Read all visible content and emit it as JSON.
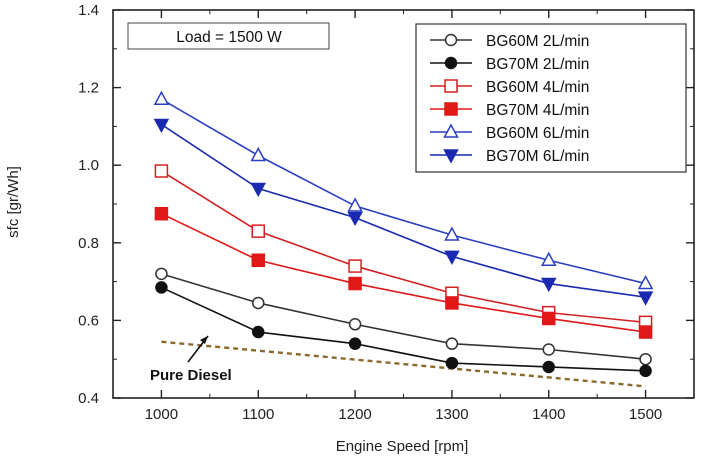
{
  "chart_data": {
    "type": "line",
    "xlabel": "Engine Speed [rpm]",
    "ylabel": "sfc [gr/Wh]",
    "xlim": [
      950,
      1550
    ],
    "ylim": [
      0.4,
      1.4
    ],
    "x": [
      1000,
      1100,
      1200,
      1300,
      1400,
      1500
    ],
    "x_ticks": [
      "1000",
      "1100",
      "1200",
      "1300",
      "1400",
      "1500"
    ],
    "y_ticks": [
      "0.4",
      "0.6",
      "0.8",
      "1.0",
      "1.2",
      "1.4"
    ],
    "grid": false,
    "legend_position": "top-right",
    "annotations": {
      "load_box": "Load = 1500 W",
      "diesel_label": "Pure Diesel"
    },
    "series": [
      {
        "name": "BG60M 2L/min",
        "color": "#333333",
        "marker": "circle-open",
        "values": [
          0.72,
          0.645,
          0.59,
          0.54,
          0.525,
          0.5
        ]
      },
      {
        "name": "BG70M 2L/min",
        "color": "#111111",
        "marker": "circle-filled",
        "values": [
          0.685,
          0.57,
          0.54,
          0.49,
          0.48,
          0.47
        ]
      },
      {
        "name": "BG60M 4L/min",
        "color": "#d42020",
        "marker": "square-open",
        "values": [
          0.985,
          0.83,
          0.74,
          0.67,
          0.62,
          0.595
        ]
      },
      {
        "name": "BG70M 4L/min",
        "color": "#e01818",
        "marker": "square-filled",
        "values": [
          0.875,
          0.755,
          0.695,
          0.645,
          0.605,
          0.57
        ]
      },
      {
        "name": "BG60M 6L/min",
        "color": "#2b3fc2",
        "marker": "triangle-up-open",
        "values": [
          1.17,
          1.025,
          0.895,
          0.82,
          0.755,
          0.695
        ]
      },
      {
        "name": "BG70M 6L/min",
        "color": "#1a2ab0",
        "marker": "triangle-down-filled",
        "values": [
          1.105,
          0.94,
          0.865,
          0.765,
          0.695,
          0.66
        ]
      }
    ],
    "reference_line": {
      "color": "#8a6a2a",
      "x": [
        1000,
        1500
      ],
      "values": [
        0.545,
        0.43
      ]
    }
  }
}
